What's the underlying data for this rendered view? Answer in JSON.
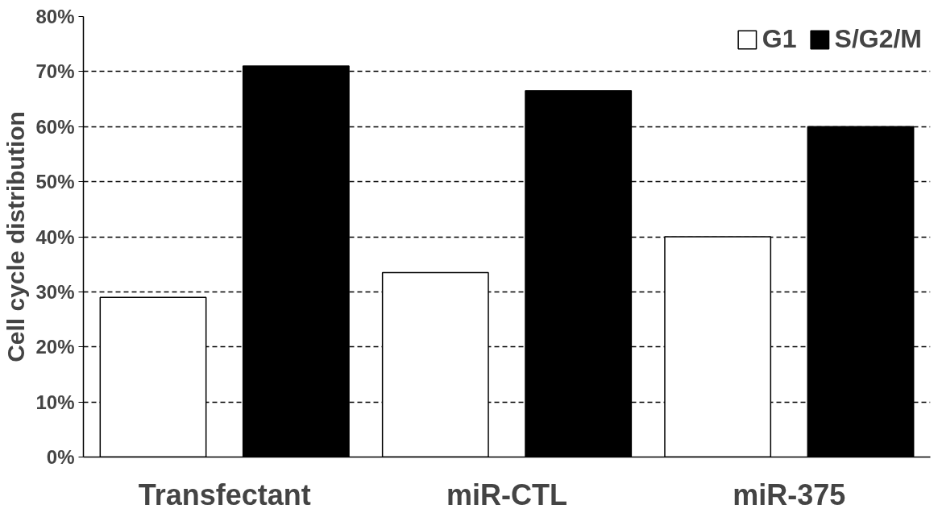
{
  "chart_data": {
    "type": "bar",
    "ylabel": "Cell cycle distribution",
    "categories": [
      "Transfectant",
      "miR-CTL",
      "miR-375"
    ],
    "series": [
      {
        "name": "G1",
        "color": "#ffffff",
        "values": [
          29,
          33.5,
          40
        ]
      },
      {
        "name": "S/G2/M",
        "color": "#000000",
        "values": [
          71,
          66.5,
          60
        ]
      }
    ],
    "ylim": [
      0,
      80
    ],
    "yticks": [
      {
        "value": 0,
        "label": "0%"
      },
      {
        "value": 10,
        "label": "10%"
      },
      {
        "value": 20,
        "label": "20%"
      },
      {
        "value": 30,
        "label": "30%"
      },
      {
        "value": 40,
        "label": "40%"
      },
      {
        "value": 50,
        "label": "50%"
      },
      {
        "value": 60,
        "label": "60%"
      },
      {
        "value": 70,
        "label": "70%"
      },
      {
        "value": 80,
        "label": "80%"
      }
    ],
    "grid": "y",
    "legend": "top right"
  }
}
